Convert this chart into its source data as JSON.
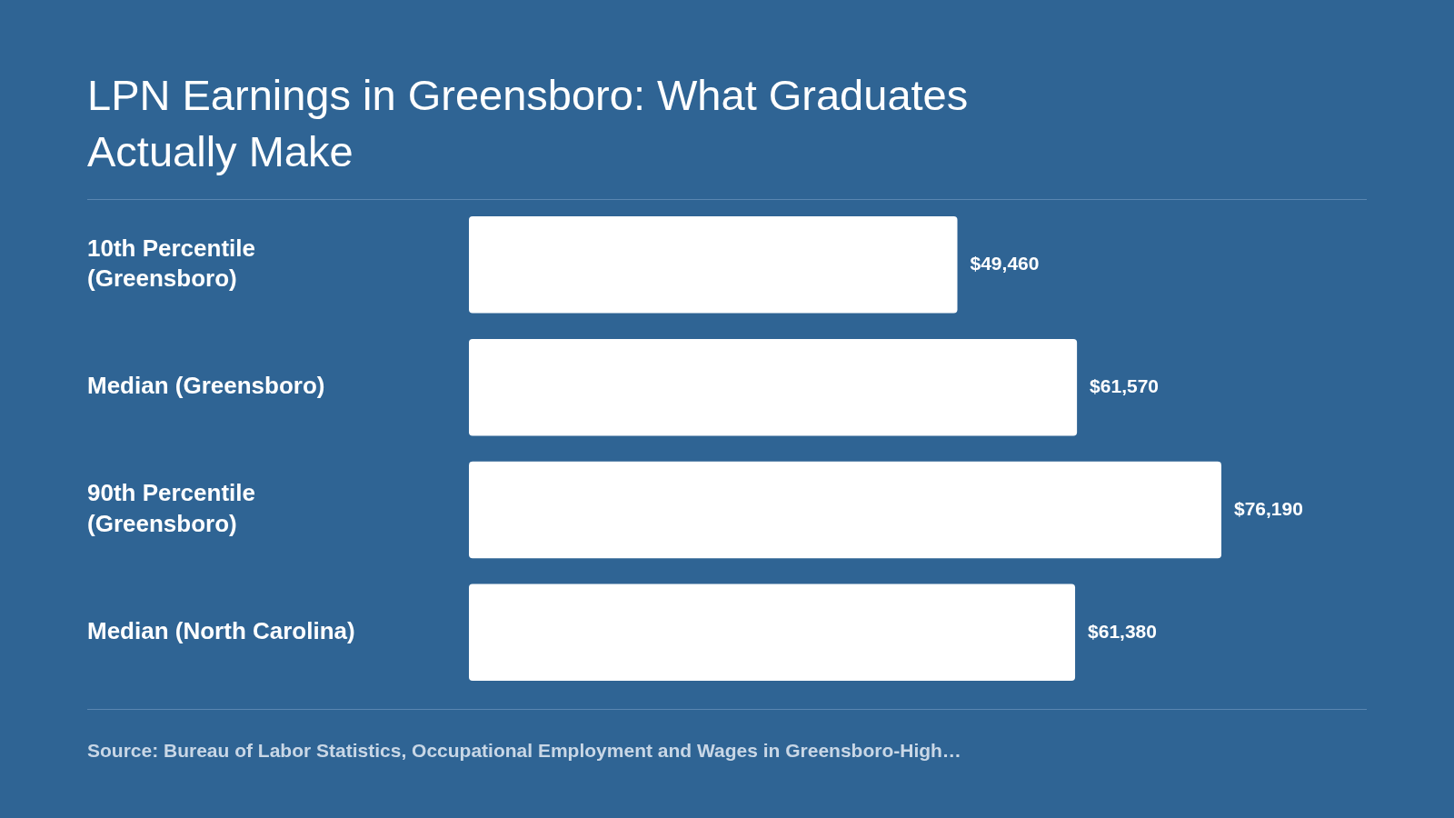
{
  "chart_data": {
    "type": "bar",
    "orientation": "horizontal",
    "title": "LPN Earnings in Greensboro: What Graduates Actually Make",
    "categories": [
      "10th Percentile (Greensboro)",
      "Median (Greensboro)",
      "90th Percentile (Greensboro)",
      "Median (North Carolina)"
    ],
    "values": [
      49460,
      61570,
      76190,
      61380
    ],
    "value_labels": [
      "$49,460",
      "$61,570",
      "$76,190",
      "$61,380"
    ],
    "color": "#ffffff",
    "annotations": [
      "Source: Bureau of Labor Statistics, Occupational Employment and Wages in Greensboro-High…"
    ],
    "legend": false
  }
}
